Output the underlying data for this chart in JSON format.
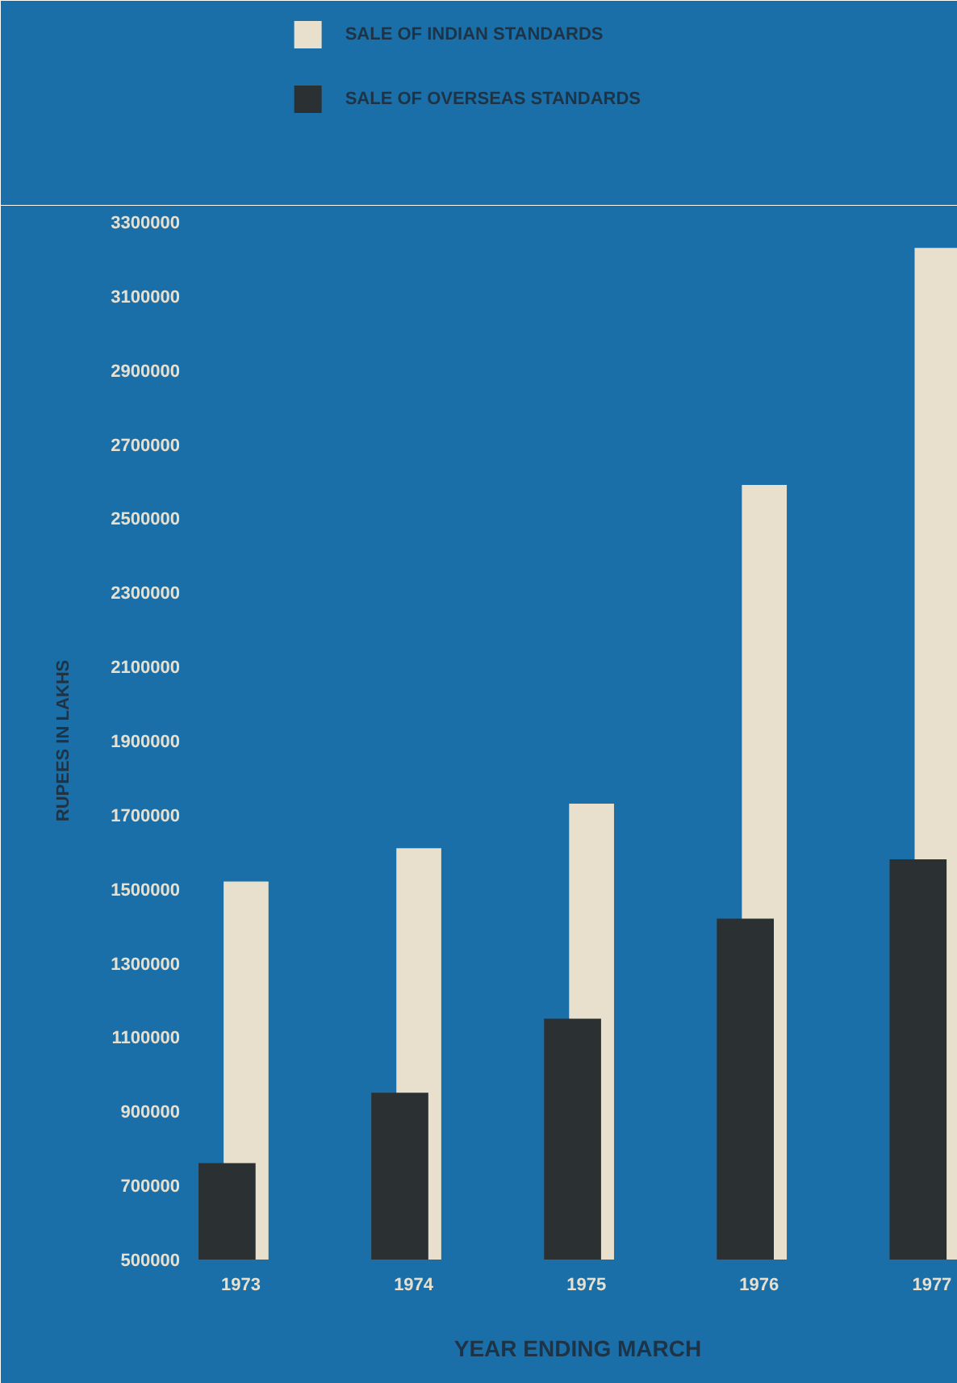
{
  "chart_data": {
    "type": "bar",
    "xlabel": "YEAR ENDING MARCH",
    "ylabel": "RUPEES IN LAKHS",
    "categories": [
      "1973",
      "1974",
      "1975",
      "1976",
      "1977"
    ],
    "series": [
      {
        "name": "SALE OF INDIAN STANDARDS",
        "color": "#e8e0cc",
        "values": [
          1520000,
          1610000,
          1730000,
          2590000,
          3230000
        ]
      },
      {
        "name": "SALE OF OVERSEAS STANDARDS",
        "color": "#2b3133",
        "values": [
          760000,
          950000,
          1150000,
          1420000,
          1580000
        ]
      }
    ],
    "ylim": [
      500000,
      3300000
    ],
    "yticks": [
      500000,
      700000,
      900000,
      1100000,
      1300000,
      1500000,
      1700000,
      1900000,
      2100000,
      2300000,
      2500000,
      2700000,
      2900000,
      3100000,
      3300000
    ],
    "grid": false,
    "legend": "top left"
  }
}
